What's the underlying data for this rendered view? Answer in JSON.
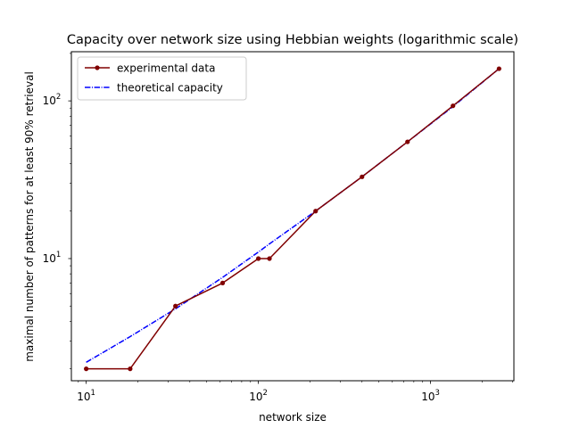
{
  "chart_data": {
    "type": "line",
    "title": "Capacity over network size using Hebbian weights (logarithmic scale)",
    "xlabel": "network size",
    "ylabel": "maximal number of patterns for at least 90% retrieval",
    "xscale": "log",
    "yscale": "log",
    "xlim": [
      8.2,
      3050
    ],
    "ylim": [
      1.68,
      205
    ],
    "xticks": [
      {
        "value": 10,
        "base": "10",
        "exp": "1"
      },
      {
        "value": 100,
        "base": "10",
        "exp": "2"
      },
      {
        "value": 1000,
        "base": "10",
        "exp": "3"
      }
    ],
    "yticks": [
      {
        "value": 10,
        "base": "10",
        "exp": "1"
      },
      {
        "value": 100,
        "base": "10",
        "exp": "2"
      }
    ],
    "grid": false,
    "legend_position": "upper-left",
    "series": [
      {
        "name": "experimental data",
        "color": "#800000",
        "style": "solid",
        "marker": "dot",
        "x": [
          10,
          18,
          33,
          62,
          100,
          116,
          215,
          400,
          735,
          1350,
          2500
        ],
        "y": [
          2,
          2,
          5,
          7,
          10,
          10,
          20,
          33,
          55,
          93,
          160
        ]
      },
      {
        "name": "theoretical capacity",
        "color": "#0000ff",
        "style": "dashdot",
        "marker": "none",
        "x": [
          10,
          18,
          33,
          62,
          100,
          116,
          215,
          400,
          735,
          1350,
          2500
        ],
        "y": [
          2.2,
          3.2,
          4.8,
          7.6,
          11,
          12.4,
          20,
          33,
          55,
          92,
          160
        ]
      }
    ]
  }
}
